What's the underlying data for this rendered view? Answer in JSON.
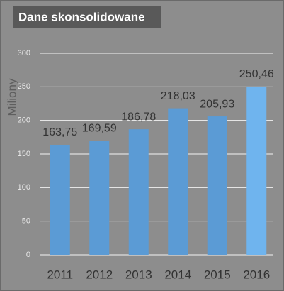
{
  "chart_data": {
    "type": "bar",
    "title": "Dane skonsolidowane",
    "y_label": "Miliony",
    "categories": [
      "2011",
      "2012",
      "2013",
      "2014",
      "2015",
      "2016"
    ],
    "values": [
      163.75,
      169.59,
      186.78,
      218.03,
      205.93,
      250.46
    ],
    "value_labels": [
      "163,75",
      "169,59",
      "186,78",
      "218,03",
      "205,93",
      "250,46"
    ],
    "colors": [
      "#5b9bd5",
      "#5b9bd5",
      "#5b9bd5",
      "#5b9bd5",
      "#5b9bd5",
      "#6fb4ee"
    ],
    "ylim": [
      0,
      300
    ],
    "yticks": [
      0,
      50,
      100,
      150,
      200,
      250,
      300
    ],
    "grid": true
  }
}
